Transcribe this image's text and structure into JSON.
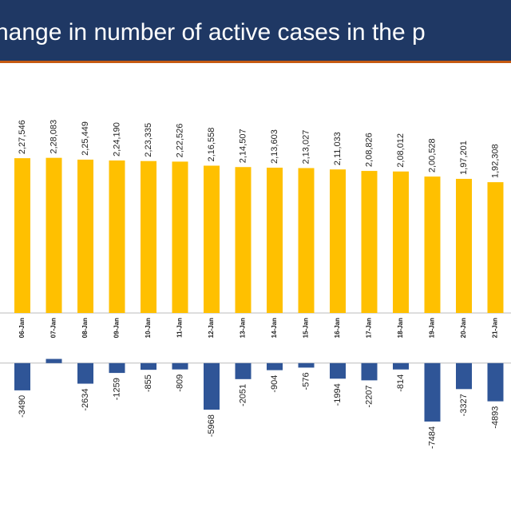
{
  "chart_data": [
    {
      "type": "bar",
      "title": "hange in number of active cases in the p",
      "categories": [
        "06-Jan",
        "07-Jan",
        "08-Jan",
        "09-Jan",
        "10-Jan",
        "11-Jan",
        "12-Jan",
        "13-Jan",
        "14-Jan",
        "15-Jan",
        "16-Jan",
        "17-Jan",
        "18-Jan",
        "19-Jan",
        "20-Jan",
        "21-Jan"
      ],
      "values": [
        227546,
        228083,
        225449,
        224190,
        223335,
        222526,
        216558,
        214507,
        213603,
        213027,
        211033,
        208826,
        208012,
        200528,
        197201,
        192308
      ],
      "value_labels": [
        "2,27,546",
        "2,28,083",
        "2,25,449",
        "2,24,190",
        "2,23,335",
        "2,22,526",
        "2,16,558",
        "2,14,507",
        "2,13,603",
        "2,13,027",
        "2,11,033",
        "2,08,826",
        "2,08,012",
        "2,00,528",
        "1,97,201",
        "1,92,308"
      ],
      "color": "#ffc000",
      "ylim": [
        0,
        250000
      ]
    },
    {
      "type": "bar",
      "values": [
        -3490,
        537,
        -2634,
        -1259,
        -855,
        -809,
        -5968,
        -2051,
        -904,
        -576,
        -1994,
        -2207,
        -814,
        -7484,
        -3327,
        -4893
      ],
      "value_labels": [
        "-3490",
        null,
        "-2634",
        "-1259",
        "-855",
        "-809",
        "-5968",
        "-2051",
        "-904",
        "-576",
        "-1994",
        "-2207",
        "-814",
        "-7484",
        "-3327",
        "-4893"
      ],
      "color": "#2f5597",
      "ylim": [
        -8000,
        1000
      ]
    }
  ]
}
